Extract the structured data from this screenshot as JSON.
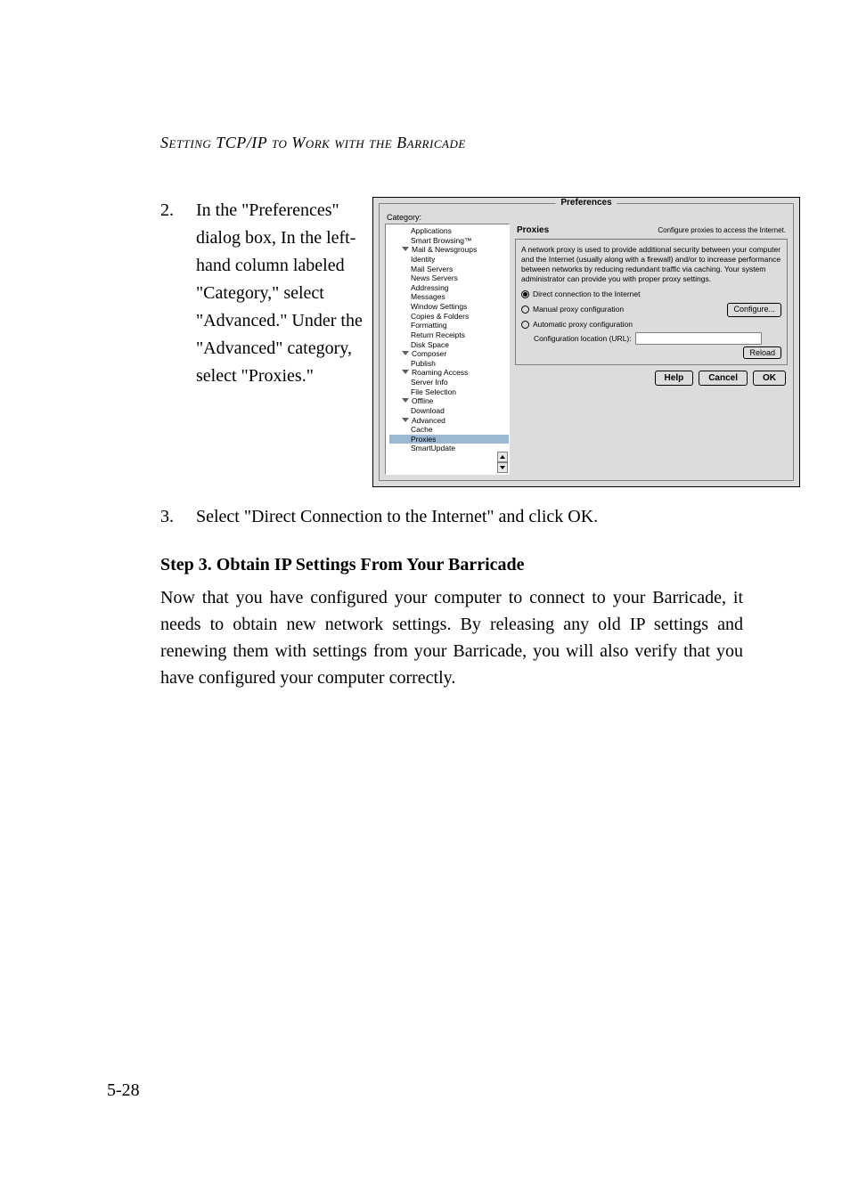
{
  "header": {
    "running_head": "Setting TCP/IP to Work with the Barricade"
  },
  "step2": {
    "num": "2.",
    "text": "In the \"Preferences\" dialog box, In the left-hand column labeled \"Category,\" select \"Advanced.\" Under the \"Advanced\" category, select \"Proxies.\""
  },
  "dialog": {
    "frame_title": "Preferences",
    "category_label": "Category:",
    "categories": [
      {
        "label": "Applications",
        "indent": 2
      },
      {
        "label": "Smart Browsing™",
        "indent": 2
      },
      {
        "label": "Mail & Newsgroups",
        "indent": 1,
        "exp": true
      },
      {
        "label": "Identity",
        "indent": 2
      },
      {
        "label": "Mail Servers",
        "indent": 2
      },
      {
        "label": "News Servers",
        "indent": 2
      },
      {
        "label": "Addressing",
        "indent": 2
      },
      {
        "label": "Messages",
        "indent": 2
      },
      {
        "label": "Window Settings",
        "indent": 2
      },
      {
        "label": "Copies & Folders",
        "indent": 2
      },
      {
        "label": "Formatting",
        "indent": 2
      },
      {
        "label": "Return Receipts",
        "indent": 2
      },
      {
        "label": "Disk Space",
        "indent": 2
      },
      {
        "label": "Composer",
        "indent": 1,
        "exp": true
      },
      {
        "label": "Publish",
        "indent": 2
      },
      {
        "label": "Roaming Access",
        "indent": 1,
        "exp": true
      },
      {
        "label": "Server Info",
        "indent": 2
      },
      {
        "label": "File Selection",
        "indent": 2
      },
      {
        "label": "Offline",
        "indent": 1,
        "exp": true
      },
      {
        "label": "Download",
        "indent": 2
      },
      {
        "label": "Advanced",
        "indent": 1,
        "exp": true
      },
      {
        "label": "Cache",
        "indent": 2
      },
      {
        "label": "Proxies",
        "indent": 2,
        "selected": true
      },
      {
        "label": "SmartUpdate",
        "indent": 2
      }
    ],
    "pane": {
      "title": "Proxies",
      "subtitle": "Configure proxies to access the Internet.",
      "desc": "A network proxy is used to provide additional security between your computer and the Internet (usually along with a firewall) and/or to increase performance between networks by reducing redundant traffic via caching. Your system administrator can provide you with proper proxy settings.",
      "r1": "Direct connection to the Internet",
      "r2": "Manual proxy configuration",
      "configure": "Configure...",
      "r3": "Automatic proxy configuration",
      "url_label": "Configuration location (URL):",
      "reload": "Reload"
    },
    "footer": {
      "help": "Help",
      "cancel": "Cancel",
      "ok": "OK"
    }
  },
  "step3": {
    "num": "3.",
    "text": "Select \"Direct Connection to the Internet\" and click OK."
  },
  "heading": "Step 3. Obtain IP Settings From Your Barricade",
  "para": "Now that you have configured your computer to connect to your Barricade, it needs to obtain new network settings. By releasing any old IP settings and renewing them with settings from your Barricade, you will also verify that you have configured your computer correctly.",
  "page_number": "5-28"
}
